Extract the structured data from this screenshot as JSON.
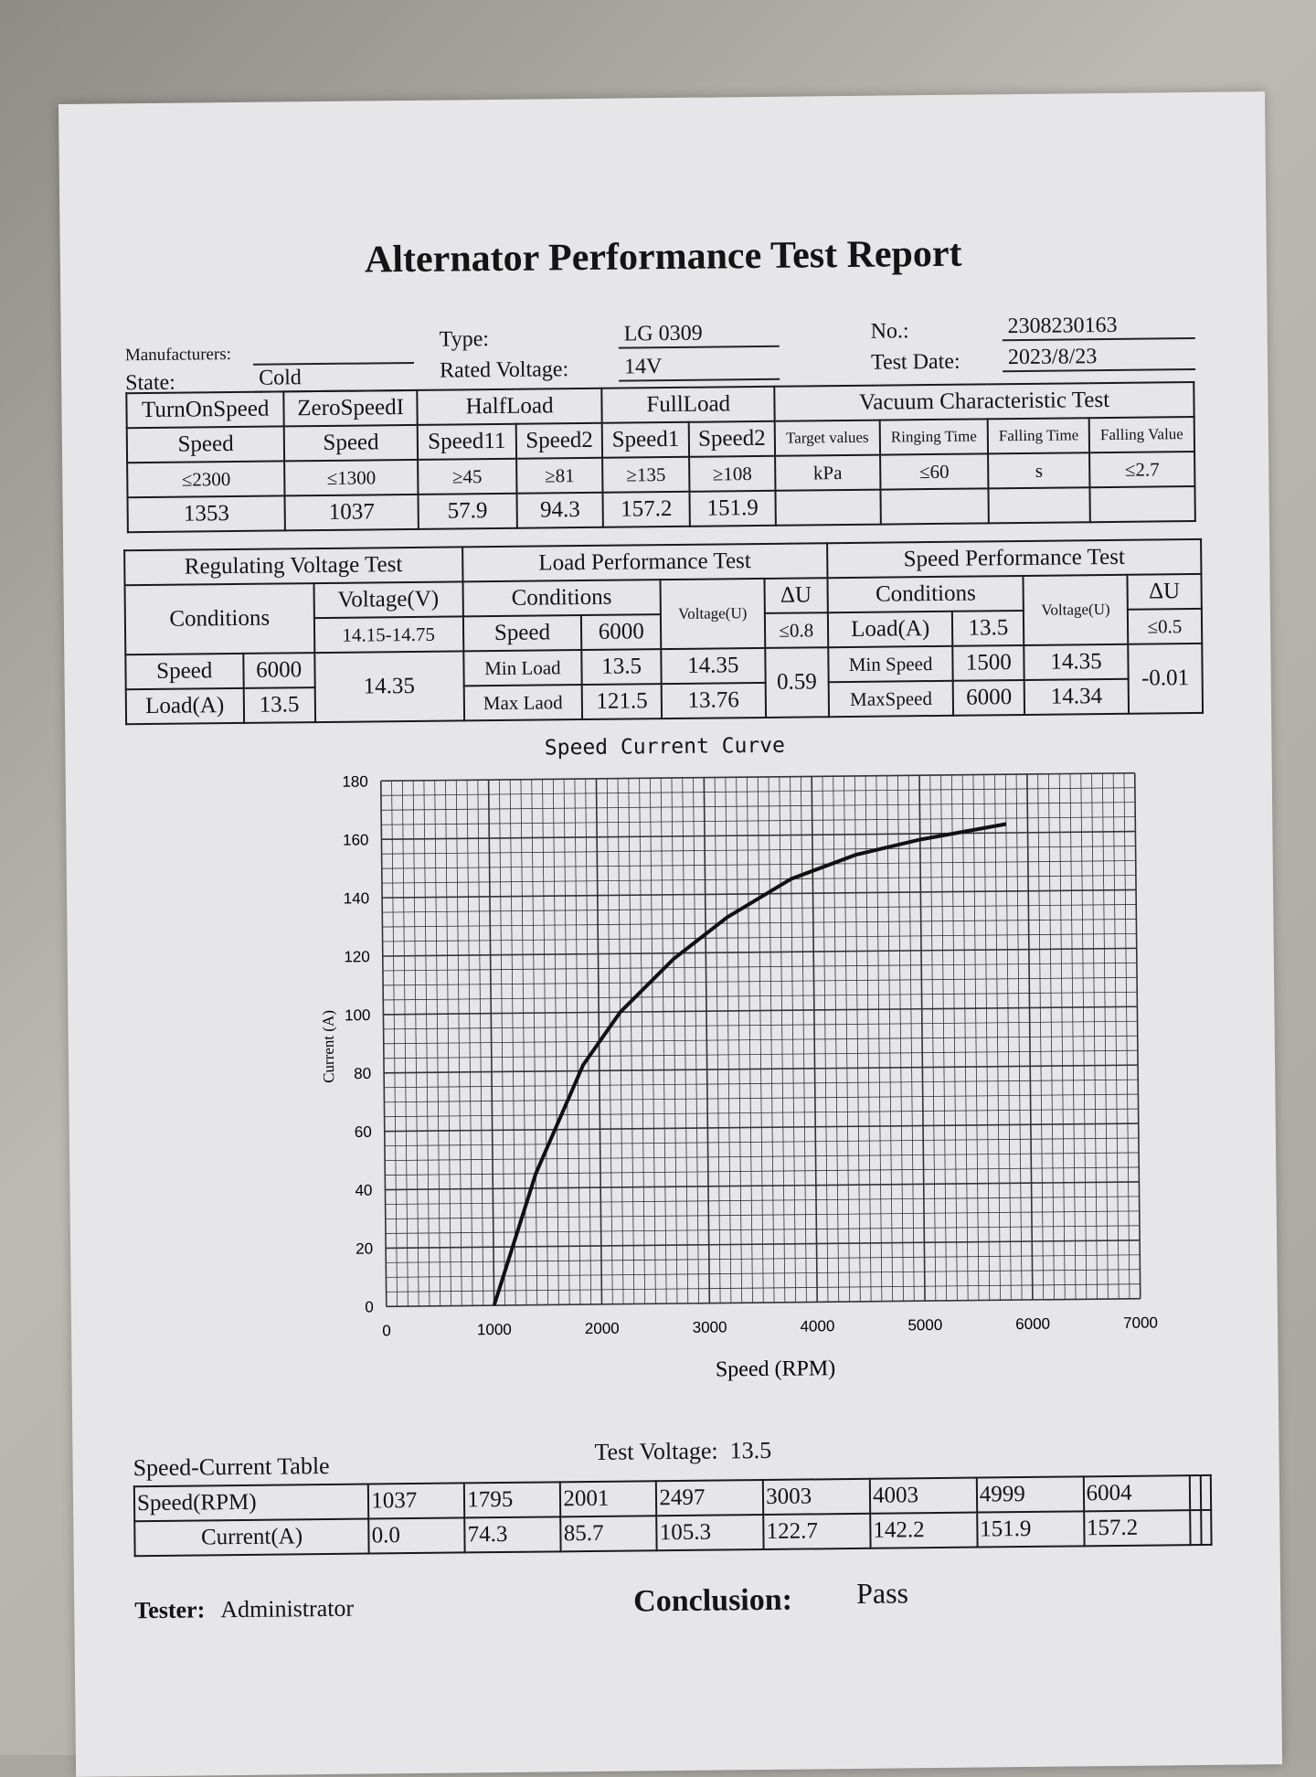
{
  "title": "Alternator Performance Test Report",
  "header": {
    "manufacturers_label": "Manufacturers:",
    "manufacturers_value": "",
    "state_label": "State:",
    "state_value": "Cold",
    "type_label": "Type:",
    "type_value": "LG 0309",
    "rated_voltage_label": "Rated Voltage:",
    "rated_voltage_value": "14V",
    "no_label": "No.:",
    "no_value": "2308230163",
    "test_date_label": "Test Date:",
    "test_date_value": "2023/8/23"
  },
  "top_table": {
    "groups": [
      "TurnOnSpeed",
      "ZeroSpeedI",
      "HalfLoad",
      "FullLoad",
      "Vacuum Characteristic Test"
    ],
    "subheaders": [
      "Speed",
      "Speed",
      "Speed11",
      "Speed2",
      "Speed1",
      "Speed2",
      "Target values",
      "Ringing Time",
      "Falling Time",
      "Falling Value"
    ],
    "limits": [
      "≤2300",
      "≤1300",
      "≥45",
      "≥81",
      "≥135",
      "≥108",
      "kPa",
      "≤60",
      "s",
      "≤2.7"
    ],
    "values": [
      "1353",
      "1037",
      "57.9",
      "94.3",
      "157.2",
      "151.9",
      "",
      "",
      "",
      ""
    ]
  },
  "regulating": {
    "title": "Regulating Voltage Test",
    "conditions": "Conditions",
    "voltage_header": "Voltage(V)",
    "voltage_range": "14.15-14.75",
    "speed_label": "Speed",
    "speed_value": "6000",
    "load_label": "Load(A)",
    "load_value": "13.5",
    "result": "14.35"
  },
  "load_perf": {
    "title": "Load Performance Test",
    "conditions": "Conditions",
    "voltage_header": "Voltage(U)",
    "du_header": "ΔU",
    "du_limit": "≤0.8",
    "speed_label": "Speed",
    "speed_value": "6000",
    "min_label": "Min Load",
    "min_value": "13.5",
    "min_voltage": "14.35",
    "max_label": "Max Laod",
    "max_value": "121.5",
    "max_voltage": "13.76",
    "du_value": "0.59"
  },
  "speed_perf": {
    "title": "Speed Performance Test",
    "conditions": "Conditions",
    "voltage_header": "Voltage(U)",
    "du_header": "ΔU",
    "du_limit": "≤0.5",
    "load_label": "Load(A)",
    "load_value": "13.5",
    "min_label": "Min Speed",
    "min_value": "1500",
    "min_voltage": "14.35",
    "max_label": "MaxSpeed",
    "max_value": "6000",
    "max_voltage": "14.34",
    "du_value": "-0.01"
  },
  "chart_data": {
    "type": "line",
    "title": "Speed Current Curve",
    "xlabel": "Speed (RPM)",
    "ylabel": "Current (A)",
    "xlim": [
      0,
      7000
    ],
    "ylim": [
      0,
      180
    ],
    "xticks": [
      "0",
      "1000",
      "2000",
      "3000",
      "4000",
      "5000",
      "6000",
      "7000"
    ],
    "yticks": [
      "0",
      "20",
      "40",
      "60",
      "80",
      "100",
      "120",
      "140",
      "160",
      "180"
    ],
    "grid": true,
    "series": [
      {
        "name": "Current",
        "x": [
          1000,
          1400,
          1850,
          2200,
          2700,
          3200,
          3800,
          4400,
          5000,
          5800
        ],
        "y": [
          0,
          45,
          82,
          100,
          118,
          132,
          145,
          153,
          158,
          163
        ]
      }
    ]
  },
  "speed_current_table": {
    "title": "Speed-Current Table",
    "test_voltage_label": "Test Voltage:",
    "test_voltage_value": "13.5",
    "row_labels": [
      "Speed(RPM)",
      "Current(A)"
    ],
    "speeds": [
      "1037",
      "1795",
      "2001",
      "2497",
      "3003",
      "4003",
      "4999",
      "6004",
      "",
      ""
    ],
    "currents": [
      "0.0",
      "74.3",
      "85.7",
      "105.3",
      "122.7",
      "142.2",
      "151.9",
      "157.2",
      "",
      ""
    ]
  },
  "footer": {
    "tester_label": "Tester:",
    "tester_value": "Administrator",
    "conclusion_label": "Conclusion:",
    "conclusion_value": "Pass"
  }
}
